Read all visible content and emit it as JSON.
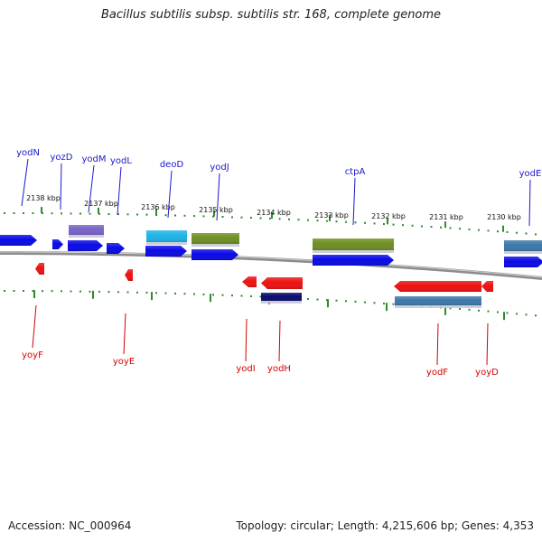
{
  "title": "Bacillus subtilis subsp. subtilis str. 168, complete genome",
  "footer": {
    "accession": "Accession: NC_000964",
    "summary": "Topology: circular; Length: 4,215,606 bp; Genes: 4,353"
  },
  "colors": {
    "backbone": "#8c8c8c",
    "tick": "#2e8b2e",
    "forward_label": "#1a1acc",
    "reverse_label": "#d40000",
    "forward_gene": "#0a0ae6",
    "reverse_gene": "#ee1111",
    "olive": "#6f8f24",
    "violet": "#7a64c8",
    "cyan": "#1eb4e6",
    "steel": "#3c78aa",
    "navy": "#0a0a70"
  },
  "scale_labels": [
    "2138 kbp",
    "2137 kbp",
    "2136 kbp",
    "2135 kbp",
    "2134 kbp",
    "2133 kbp",
    "2132 kbp",
    "2131 kbp",
    "2130 kbp"
  ],
  "forward_genes": [
    {
      "name": "yodN"
    },
    {
      "name": "yozD"
    },
    {
      "name": "yodM"
    },
    {
      "name": "yodL"
    },
    {
      "name": "deoD"
    },
    {
      "name": "yodJ"
    },
    {
      "name": "ctpA"
    },
    {
      "name": "yodE"
    }
  ],
  "reverse_genes": [
    {
      "name": "yoyF"
    },
    {
      "name": "yoyE"
    },
    {
      "name": "yodI"
    },
    {
      "name": "yodH"
    },
    {
      "name": "yodF"
    },
    {
      "name": "yoyD"
    }
  ]
}
